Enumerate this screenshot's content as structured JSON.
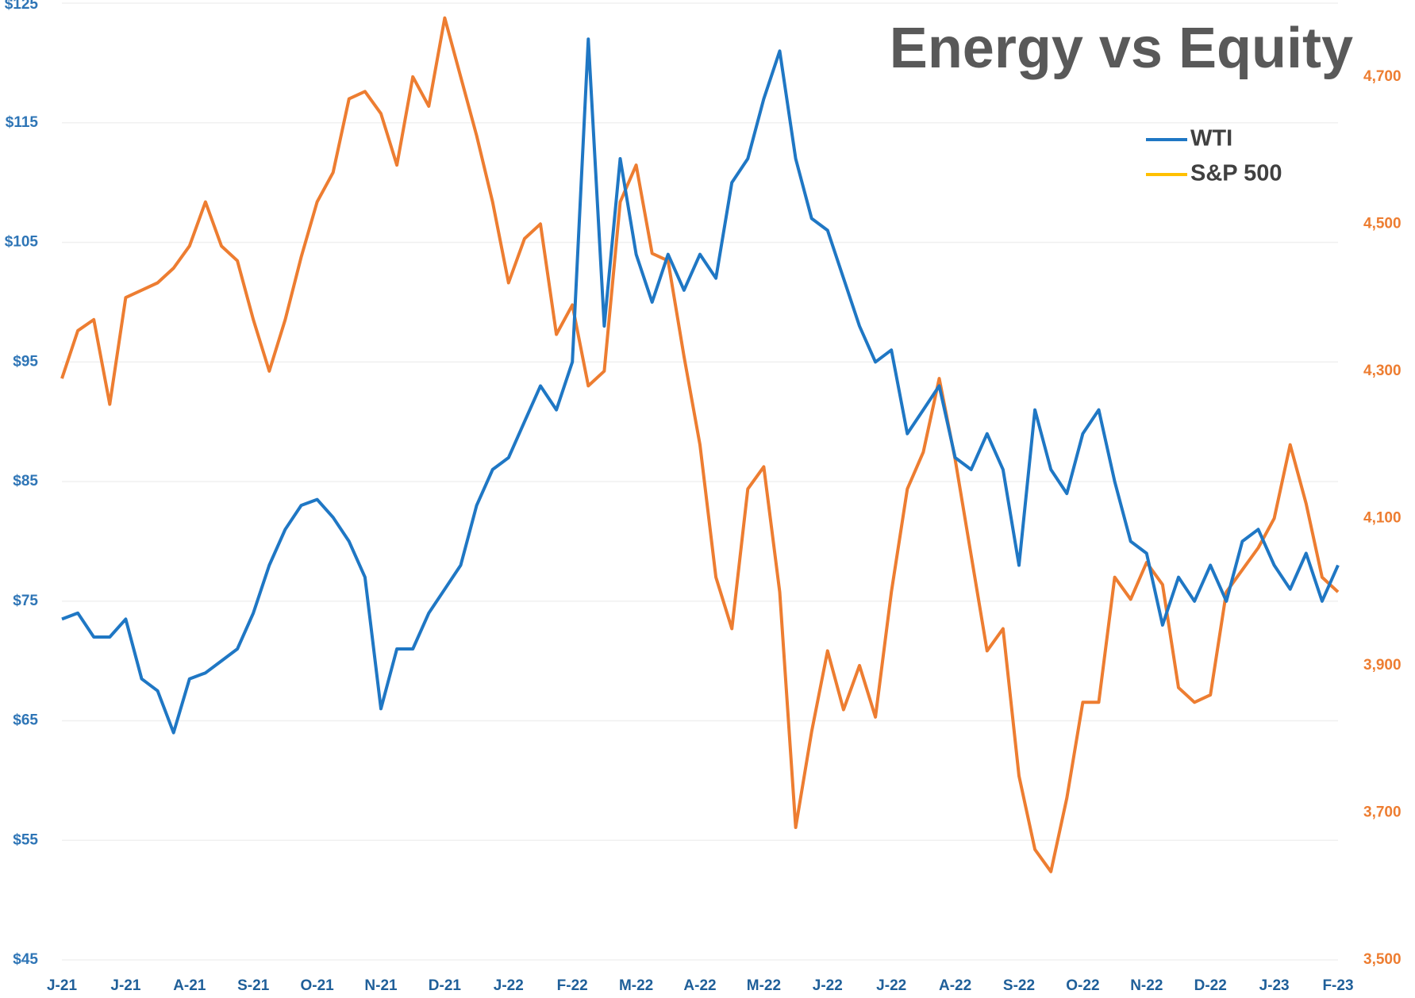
{
  "chart_data": {
    "type": "line",
    "title": "Energy vs Equity",
    "categories": [
      "J-21",
      null,
      null,
      null,
      "J-21",
      null,
      null,
      null,
      "A-21",
      null,
      null,
      null,
      "S-21",
      null,
      null,
      null,
      "O-21",
      null,
      null,
      null,
      "N-21",
      null,
      null,
      null,
      "D-21",
      null,
      null,
      null,
      "J-22",
      null,
      null,
      null,
      "F-22",
      null,
      null,
      null,
      "M-22",
      null,
      null,
      null,
      "A-22",
      null,
      null,
      null,
      "M-22",
      null,
      null,
      null,
      "J-22",
      null,
      null,
      null,
      "J-22",
      null,
      null,
      null,
      "A-22",
      null,
      null,
      null,
      "S-22",
      null,
      null,
      null,
      "O-22",
      null,
      null,
      null,
      "N-22",
      null,
      null,
      null,
      "D-22",
      null,
      null,
      null,
      "J-23",
      null,
      null,
      null,
      "F-23"
    ],
    "series": [
      {
        "name": "WTI",
        "color": "#1f77c4",
        "legend_color": "#1f77c4",
        "axis": "y",
        "values": [
          73.5,
          74,
          72,
          72,
          73.5,
          68.5,
          67.5,
          64,
          68.5,
          69,
          70,
          71,
          74,
          78,
          81,
          83,
          83.5,
          82,
          80,
          77,
          66,
          71,
          71,
          74,
          76,
          78,
          83,
          86,
          87,
          90,
          93,
          91,
          95,
          122,
          98,
          112,
          104,
          100,
          104,
          101,
          104,
          102,
          110,
          112,
          117,
          121,
          112,
          107,
          106,
          102,
          98,
          95,
          96,
          89,
          91,
          93,
          87,
          86,
          89,
          86,
          78,
          91,
          86,
          84,
          89,
          91,
          85,
          80,
          79,
          73,
          77,
          75,
          78,
          75,
          80,
          81,
          78,
          76,
          79,
          75,
          78
        ]
      },
      {
        "name": "S&P 500",
        "color": "#ed7d31",
        "legend_color": "#ffc000",
        "axis": "y2",
        "values": [
          4290,
          4355,
          4370,
          4255,
          4400,
          4410,
          4420,
          4440,
          4470,
          4530,
          4470,
          4450,
          4370,
          4300,
          4370,
          4455,
          4530,
          4570,
          4670,
          4680,
          4650,
          4580,
          4700,
          4660,
          4780,
          4700,
          4620,
          4530,
          4420,
          4480,
          4500,
          4350,
          4390,
          4280,
          4300,
          4530,
          4580,
          4460,
          4450,
          4320,
          4200,
          4020,
          3950,
          4140,
          4170,
          4000,
          3680,
          3810,
          3920,
          3840,
          3900,
          3830,
          4000,
          4140,
          4190,
          4290,
          4180,
          4050,
          3920,
          3950,
          3750,
          3650,
          3620,
          3720,
          3850,
          3850,
          4020,
          3990,
          4040,
          4010,
          3870,
          3850,
          3860,
          4000,
          4030,
          4060,
          4100,
          4200,
          4120,
          4020,
          4000
        ]
      }
    ],
    "ylim": [
      45,
      125
    ],
    "yticks": [
      {
        "value": 45,
        "label": "$45"
      },
      {
        "value": 55,
        "label": "$55"
      },
      {
        "value": 65,
        "label": "$65"
      },
      {
        "value": 75,
        "label": "$75"
      },
      {
        "value": 85,
        "label": "$85"
      },
      {
        "value": 95,
        "label": "$95"
      },
      {
        "value": 105,
        "label": "$105"
      },
      {
        "value": 115,
        "label": "$115"
      },
      {
        "value": 125,
        "label": "$125"
      }
    ],
    "y2lim": [
      3500,
      4800
    ],
    "y2ticks": [
      {
        "value": 3500,
        "label": "3,500"
      },
      {
        "value": 3700,
        "label": "3,700"
      },
      {
        "value": 3900,
        "label": "3,900"
      },
      {
        "value": 4100,
        "label": "4,100"
      },
      {
        "value": 4300,
        "label": "4,300"
      },
      {
        "value": 4500,
        "label": "4,500"
      },
      {
        "value": 4700,
        "label": "4,700"
      }
    ],
    "grid": true,
    "legend": "upper right"
  }
}
